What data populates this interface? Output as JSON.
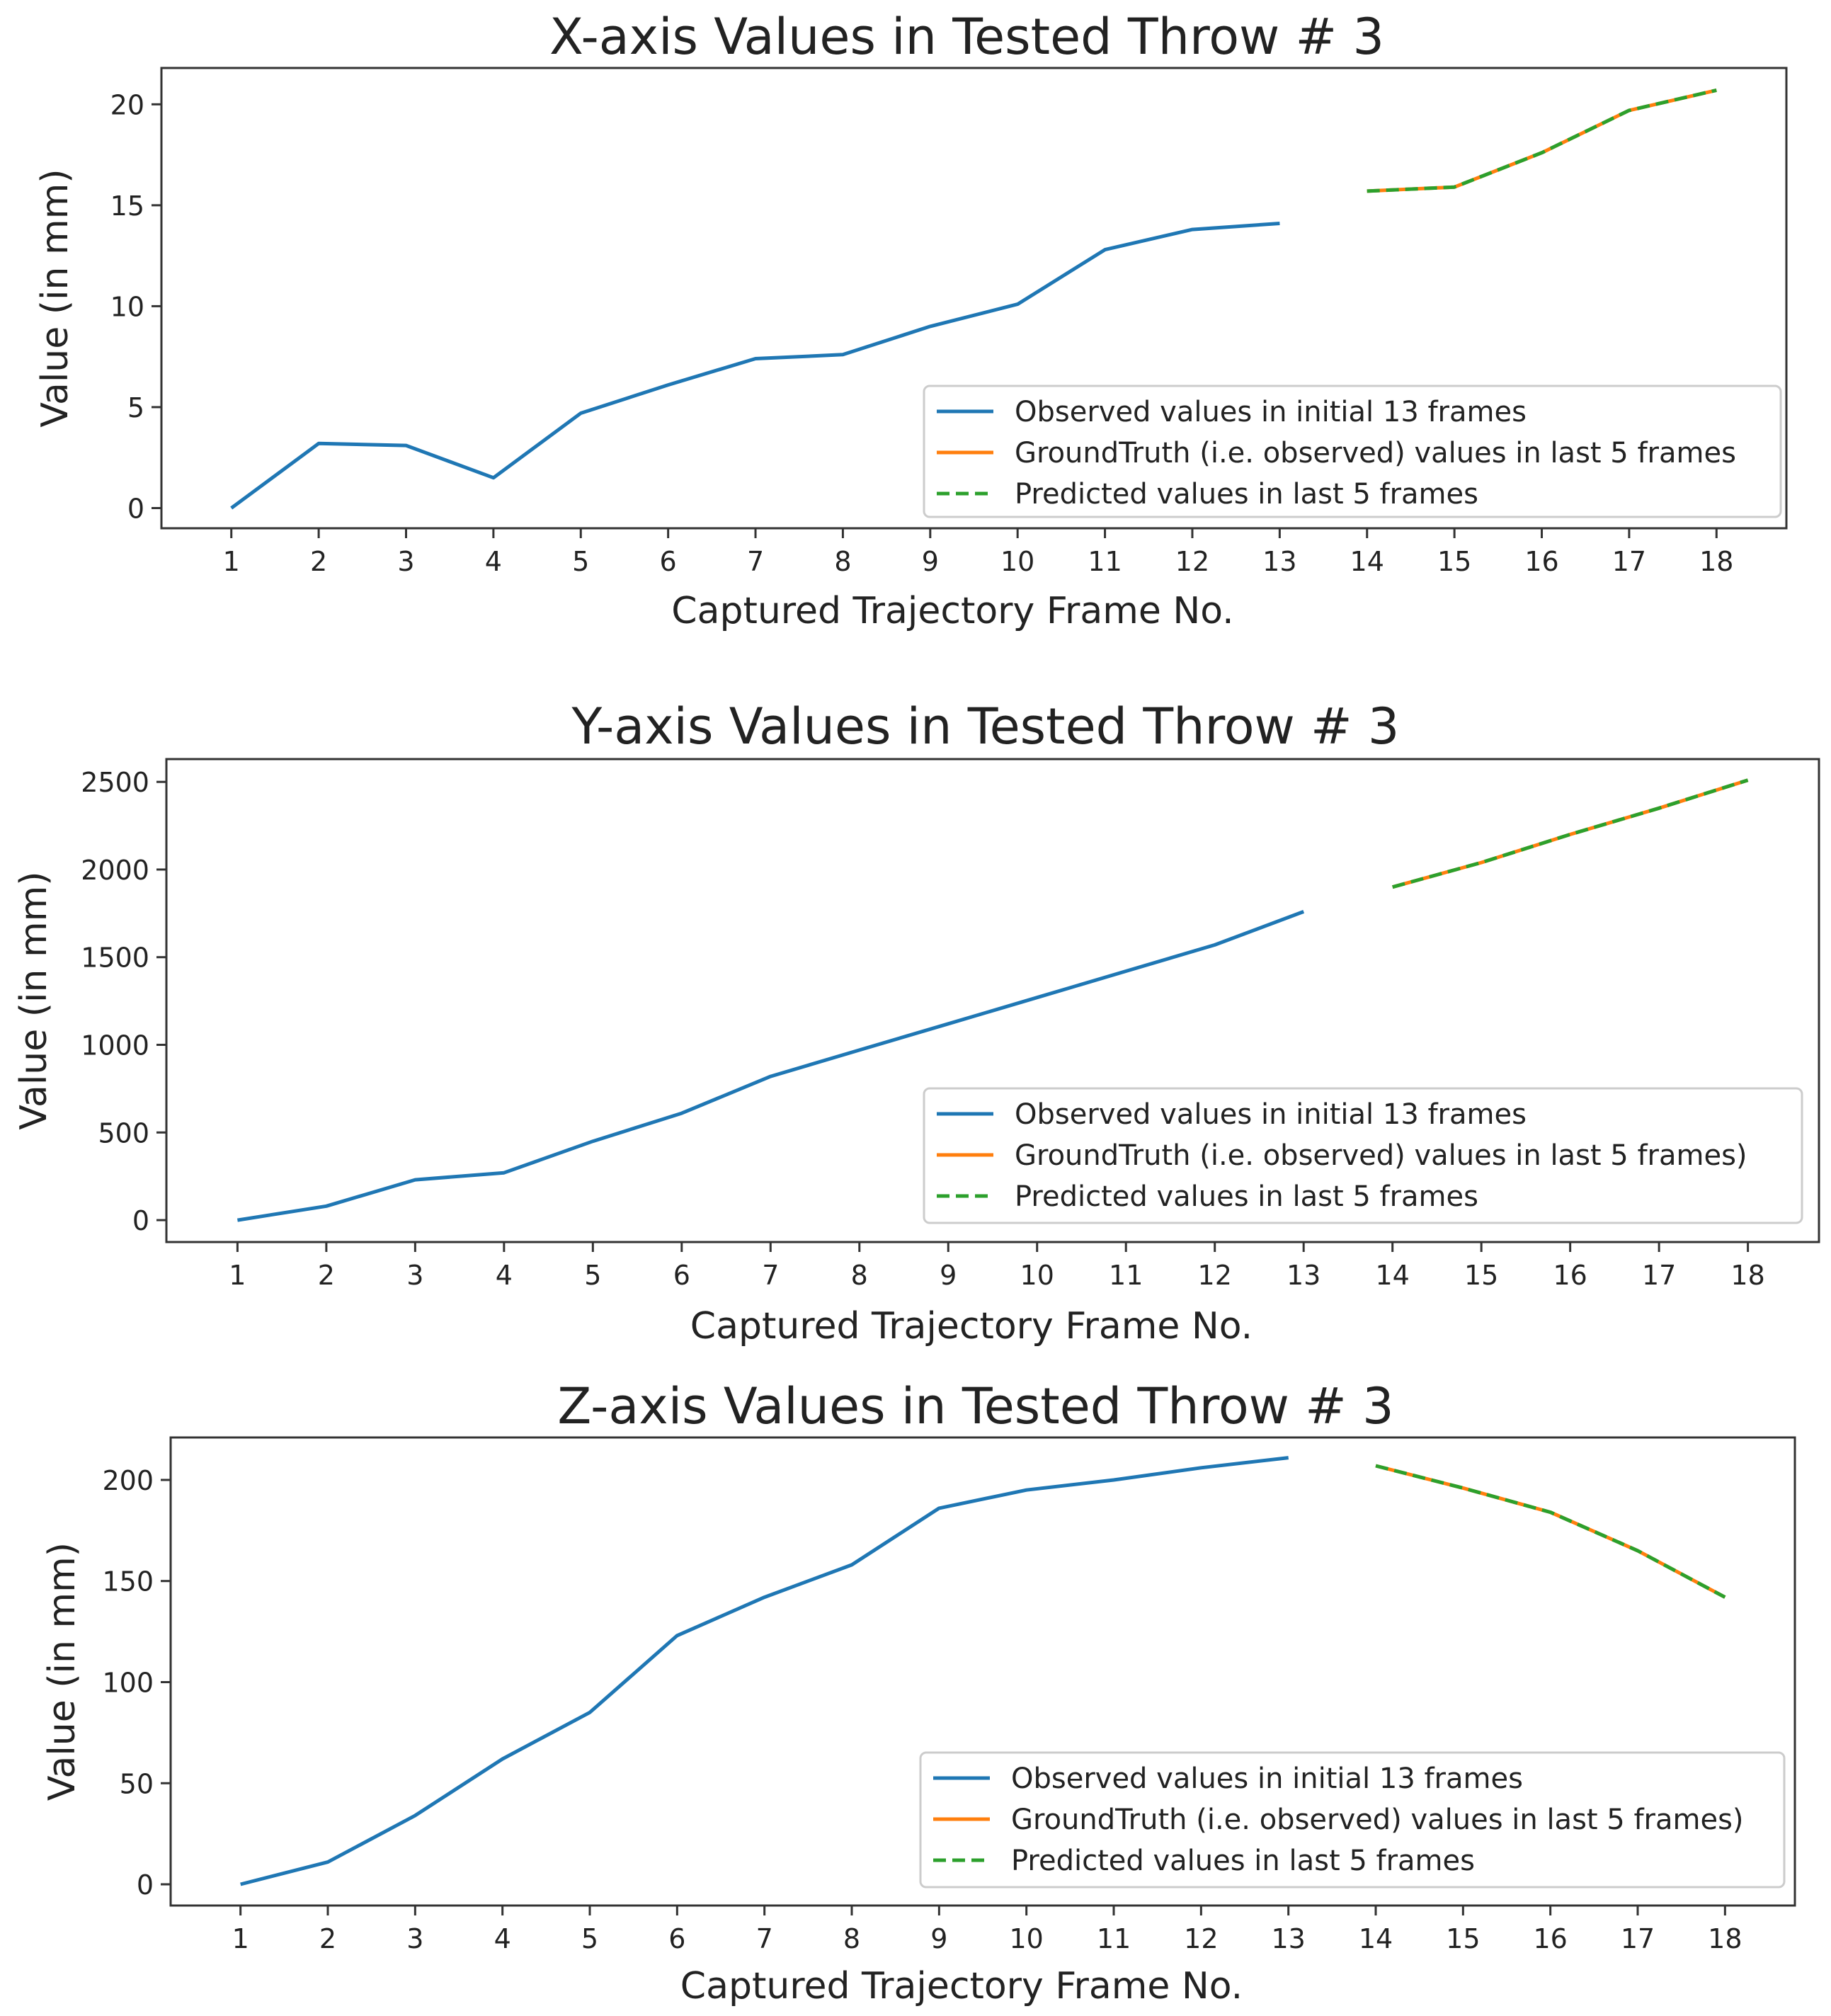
{
  "chart_data": [
    {
      "type": "line",
      "title": "X-axis Values in Tested Throw # 3",
      "xlabel": "Captured Trajectory Frame No.",
      "ylabel": "Value (in mm)",
      "x_ticks": [
        "1",
        "2",
        "3",
        "4",
        "5",
        "6",
        "7",
        "8",
        "9",
        "10",
        "11",
        "12",
        "13",
        "14",
        "15",
        "16",
        "17",
        "18"
      ],
      "y_ticks": [
        0,
        5,
        10,
        15,
        20
      ],
      "xlim": [
        0.2,
        18.8
      ],
      "ylim": [
        -1.0,
        21.8
      ],
      "grid": false,
      "legend_position": "lower-right",
      "series": [
        {
          "name": "Observed values in initial 13 frames",
          "color": "#1f77b4",
          "style": "solid",
          "x": [
            1,
            2,
            3,
            4,
            5,
            6,
            7,
            8,
            9,
            10,
            11,
            12,
            13
          ],
          "y": [
            0,
            3.2,
            3.1,
            1.5,
            4.7,
            6.1,
            7.4,
            7.6,
            9.0,
            10.1,
            12.8,
            13.8,
            14.1
          ]
        },
        {
          "name": "GroundTruth (i.e. observed) values in last 5 frames",
          "color": "#ff7f0e",
          "style": "solid",
          "x": [
            14,
            15,
            16,
            17,
            18
          ],
          "y": [
            15.7,
            15.9,
            17.6,
            19.7,
            20.7
          ]
        },
        {
          "name": "Predicted values in last 5 frames",
          "color": "#2ca02c",
          "style": "dashed",
          "x": [
            14,
            15,
            16,
            17,
            18
          ],
          "y": [
            15.7,
            15.9,
            17.6,
            19.7,
            20.7
          ]
        }
      ]
    },
    {
      "type": "line",
      "title": "Y-axis Values in Tested Throw # 3",
      "xlabel": "Captured Trajectory Frame No.",
      "ylabel": "Value (in mm)",
      "x_ticks": [
        "1",
        "2",
        "3",
        "4",
        "5",
        "6",
        "7",
        "8",
        "9",
        "10",
        "11",
        "12",
        "13",
        "14",
        "15",
        "16",
        "17",
        "18"
      ],
      "y_ticks": [
        0,
        500,
        1000,
        1500,
        2000,
        2500
      ],
      "xlim": [
        0.2,
        18.8
      ],
      "ylim": [
        -125,
        2630
      ],
      "grid": false,
      "legend_position": "lower-right",
      "series": [
        {
          "name": "Observed values in initial 13 frames",
          "color": "#1f77b4",
          "style": "solid",
          "x": [
            1,
            2,
            3,
            4,
            5,
            6,
            7,
            8,
            9,
            10,
            11,
            12,
            13
          ],
          "y": [
            0,
            80,
            230,
            270,
            450,
            610,
            820,
            970,
            1120,
            1270,
            1420,
            1570,
            1760
          ]
        },
        {
          "name": "GroundTruth (i.e. observed) values in last 5 frames)",
          "color": "#ff7f0e",
          "style": "solid",
          "x": [
            14,
            15,
            16,
            17,
            18
          ],
          "y": [
            1900,
            2040,
            2200,
            2350,
            2510
          ]
        },
        {
          "name": "Predicted values in last 5 frames",
          "color": "#2ca02c",
          "style": "dashed",
          "x": [
            14,
            15,
            16,
            17,
            18
          ],
          "y": [
            1900,
            2040,
            2200,
            2350,
            2510
          ]
        }
      ]
    },
    {
      "type": "line",
      "title": "Z-axis Values in Tested Throw # 3",
      "xlabel": "Captured Trajectory Frame No.",
      "ylabel": "Value (in mm)",
      "x_ticks": [
        "1",
        "2",
        "3",
        "4",
        "5",
        "6",
        "7",
        "8",
        "9",
        "10",
        "11",
        "12",
        "13",
        "14",
        "15",
        "16",
        "17",
        "18"
      ],
      "y_ticks": [
        0,
        50,
        100,
        150,
        200
      ],
      "xlim": [
        0.2,
        18.8
      ],
      "ylim": [
        -10.5,
        221
      ],
      "grid": false,
      "legend_position": "lower-right",
      "series": [
        {
          "name": "Observed values in initial 13 frames",
          "color": "#1f77b4",
          "style": "solid",
          "x": [
            1,
            2,
            3,
            4,
            5,
            6,
            7,
            8,
            9,
            10,
            11,
            12,
            13
          ],
          "y": [
            0,
            11,
            34,
            62,
            85,
            123,
            142,
            158,
            186,
            195,
            200,
            206,
            211
          ]
        },
        {
          "name": "GroundTruth (i.e. observed) values in last 5 frames)",
          "color": "#ff7f0e",
          "style": "solid",
          "x": [
            14,
            15,
            16,
            17,
            18
          ],
          "y": [
            207,
            196,
            184,
            165,
            142
          ]
        },
        {
          "name": "Predicted values in last 5 frames",
          "color": "#2ca02c",
          "style": "dashed",
          "x": [
            14,
            15,
            16,
            17,
            18
          ],
          "y": [
            207,
            196,
            184,
            165,
            142
          ]
        }
      ]
    }
  ]
}
